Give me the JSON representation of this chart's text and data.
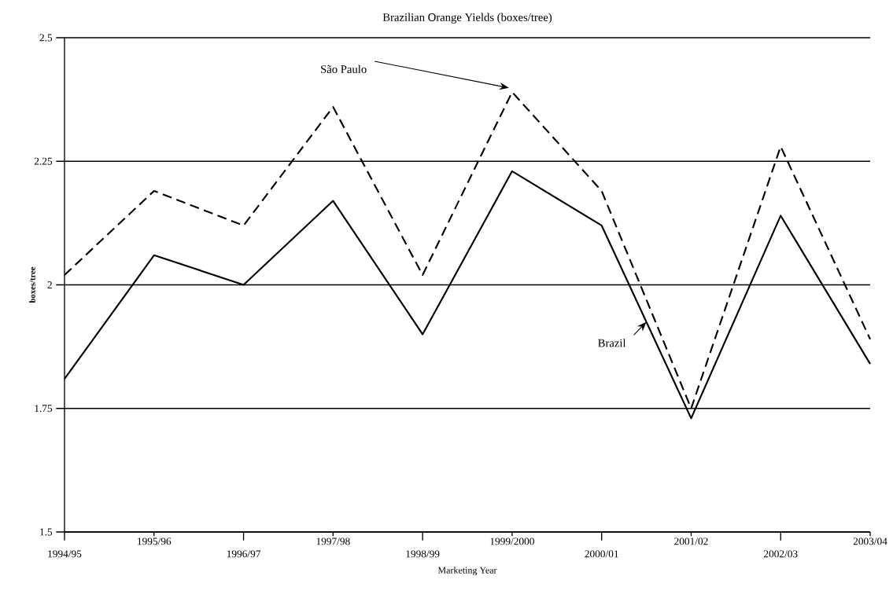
{
  "chart_data": {
    "type": "line",
    "title": "Brazilian Orange Yields (boxes/tree)",
    "xlabel": "Marketing Year",
    "ylabel": "boxes/tree",
    "categories": [
      "1994/95",
      "1995/96",
      "1996/97",
      "1997/98",
      "1998/99",
      "1999/2000",
      "2000/01",
      "2001/02",
      "2002/03",
      "2003/04"
    ],
    "series": [
      {
        "name": "São Paulo",
        "color": "#000000",
        "line_style": "dashed",
        "values": [
          2.02,
          2.19,
          2.12,
          2.36,
          2.02,
          2.39,
          2.19,
          1.75,
          2.28,
          1.89
        ]
      },
      {
        "name": "Brazil",
        "color": "#000000",
        "line_style": "solid",
        "values": [
          1.81,
          2.06,
          2.0,
          2.17,
          1.9,
          2.23,
          2.12,
          1.73,
          2.14,
          1.84
        ]
      }
    ],
    "ylim": [
      1.5,
      2.5
    ],
    "yticks": [
      1.5,
      1.75,
      2,
      2.25,
      2.5
    ],
    "grid": "y",
    "legend": false
  }
}
